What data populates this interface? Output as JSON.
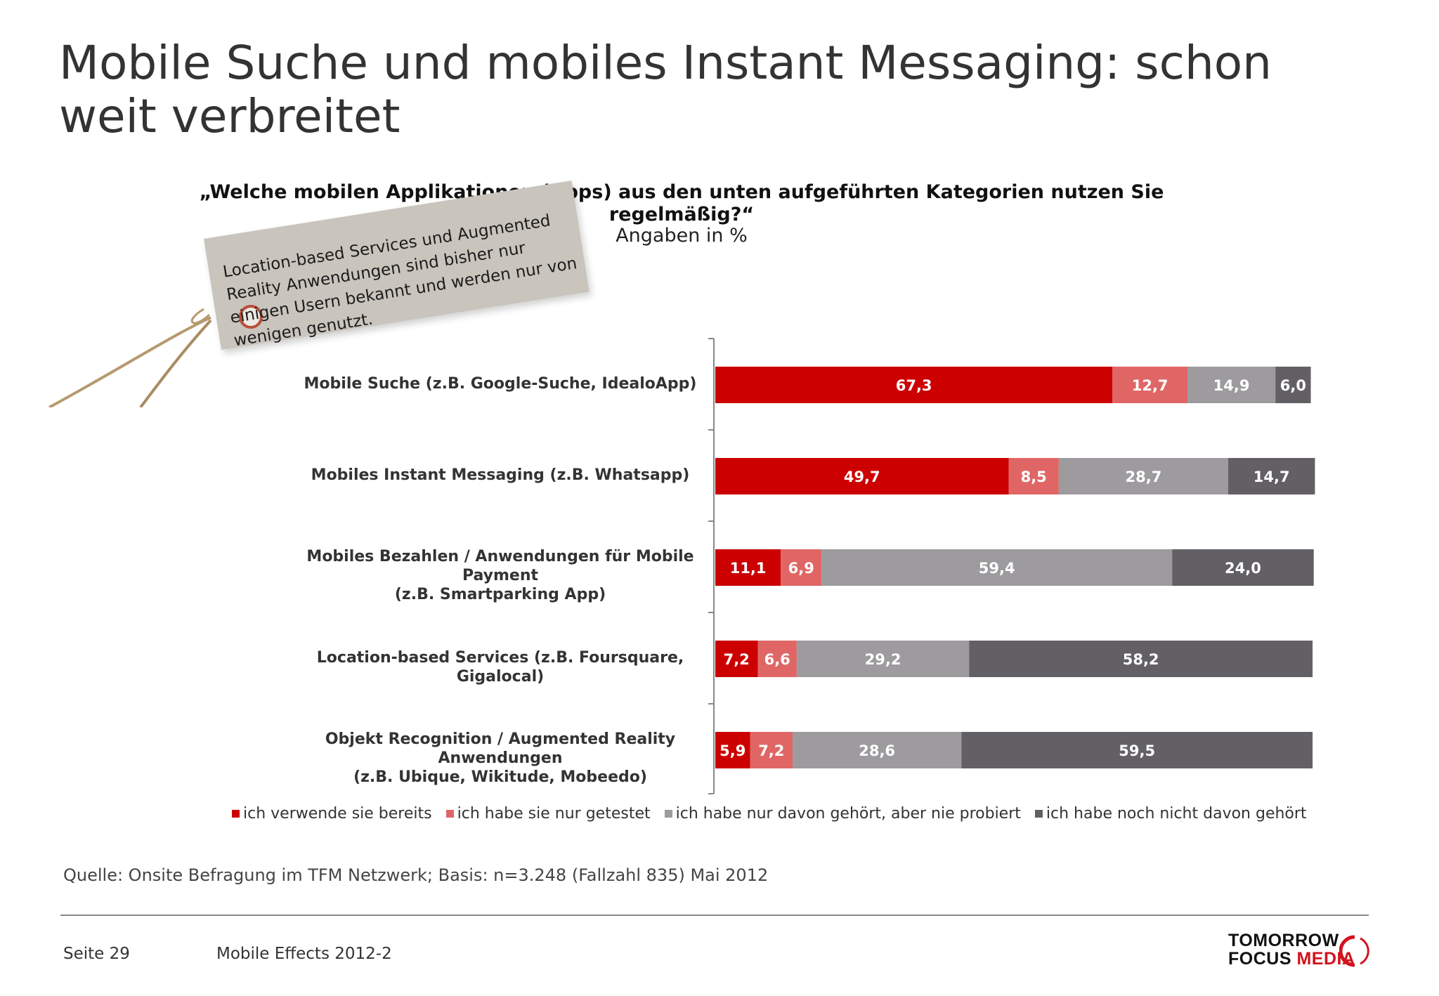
{
  "title": "Mobile Suche und mobiles Instant Messaging: schon weit verbreitet",
  "tag": {
    "text": "Location-based Services und Augmented Reality Anwendungen sind bisher nur einigen Usern bekannt und werden nur von wenigen genutzt."
  },
  "colors": {
    "verwende": "#cc0000",
    "getestet": "#e06666",
    "gehoert": "#9d9b9e",
    "nicht": "#636065"
  },
  "chart_data": {
    "type": "bar",
    "orientation": "horizontal",
    "stacked": true,
    "title": "„Welche mobilen Applikationen (Apps) aus den unten aufgeführten Kategorien nutzen Sie regelmäßig?“",
    "subtitle": "Angaben in %",
    "categories": [
      [
        "Mobile Suche (z.B. Google-Suche, IdealoApp)"
      ],
      [
        "Mobiles Instant Messaging (z.B. Whatsapp)"
      ],
      [
        "Mobiles Bezahlen / Anwendungen für Mobile Payment",
        "(z.B. Smartparking App)"
      ],
      [
        "Location-based Services (z.B. Foursquare, Gigalocal)"
      ],
      [
        "Objekt Recognition / Augmented Reality Anwendungen",
        "(z.B. Ubique, Wikitude, Mobeedo)"
      ]
    ],
    "series": [
      {
        "name": "ich verwende sie bereits",
        "values": [
          67.3,
          49.7,
          11.1,
          7.2,
          5.9
        ],
        "labels": [
          "67,3",
          "49,7",
          "11,1",
          "7,2",
          "5,9"
        ]
      },
      {
        "name": "ich habe sie nur getestet",
        "values": [
          12.7,
          8.5,
          6.9,
          6.6,
          7.2
        ],
        "labels": [
          "12,7",
          "8,5",
          "6,9",
          "6,6",
          "7,2"
        ]
      },
      {
        "name": "ich habe nur davon gehört, aber nie probiert",
        "values": [
          14.9,
          28.7,
          59.4,
          29.2,
          28.6
        ],
        "labels": [
          "14,9",
          "28,7",
          "59,4",
          "29,2",
          "28,6"
        ]
      },
      {
        "name": "ich habe noch nicht davon gehört",
        "values": [
          6.0,
          14.7,
          24.0,
          58.2,
          59.5
        ],
        "labels": [
          "6,0",
          "14,7",
          "24,0",
          "58,2",
          "59,5"
        ]
      }
    ],
    "xlim": [
      0,
      100
    ],
    "grid": false,
    "legend_position": "bottom"
  },
  "footer": {
    "source": "Quelle: Onsite Befragung im TFM Netzwerk; Basis: n=3.248 (Fallzahl 835) Mai 2012",
    "page": "Seite 29",
    "doc": "Mobile Effects 2012-2",
    "logo_line1": "TOMORROW",
    "logo_line2a": "FOCUS ",
    "logo_line2b": "MEDIA"
  }
}
